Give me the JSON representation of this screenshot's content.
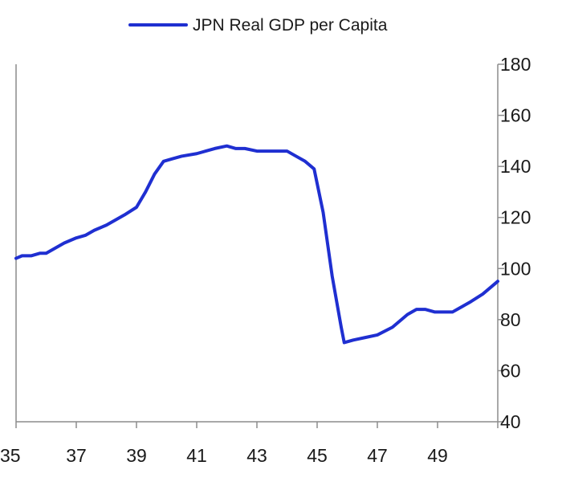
{
  "chart_data": {
    "type": "line",
    "legend_position": "top-center",
    "grid": false,
    "x_ticks": [
      "35",
      "37",
      "39",
      "41",
      "43",
      "45",
      "47",
      "49"
    ],
    "xlim": [
      35,
      51
    ],
    "y_axis_side": "right",
    "ylim": [
      40,
      180
    ],
    "y_ticks": [
      "180",
      "160",
      "140",
      "120",
      "100",
      "80",
      "60",
      "40"
    ],
    "series": [
      {
        "name": "JPN Real GDP per Capita",
        "color": "#1f2fd1",
        "points": [
          [
            35.0,
            104
          ],
          [
            35.2,
            105
          ],
          [
            35.5,
            105
          ],
          [
            35.8,
            106
          ],
          [
            36.0,
            106
          ],
          [
            36.3,
            108
          ],
          [
            36.6,
            110
          ],
          [
            37.0,
            112
          ],
          [
            37.3,
            113
          ],
          [
            37.6,
            115
          ],
          [
            38.0,
            117
          ],
          [
            38.3,
            119
          ],
          [
            38.6,
            121
          ],
          [
            39.0,
            124
          ],
          [
            39.3,
            130
          ],
          [
            39.6,
            137
          ],
          [
            39.9,
            142
          ],
          [
            40.2,
            143
          ],
          [
            40.5,
            144
          ],
          [
            41.0,
            145
          ],
          [
            41.3,
            146
          ],
          [
            41.6,
            147
          ],
          [
            42.0,
            148
          ],
          [
            42.3,
            147
          ],
          [
            42.6,
            147
          ],
          [
            43.0,
            146
          ],
          [
            43.5,
            146
          ],
          [
            44.0,
            146
          ],
          [
            44.3,
            144
          ],
          [
            44.6,
            142
          ],
          [
            44.9,
            139
          ],
          [
            45.2,
            122
          ],
          [
            45.5,
            97
          ],
          [
            45.8,
            77
          ],
          [
            45.9,
            71
          ],
          [
            46.2,
            72
          ],
          [
            46.6,
            73
          ],
          [
            47.0,
            74
          ],
          [
            47.5,
            77
          ],
          [
            47.8,
            80
          ],
          [
            48.0,
            82
          ],
          [
            48.3,
            84
          ],
          [
            48.6,
            84
          ],
          [
            48.9,
            83
          ],
          [
            49.2,
            83
          ],
          [
            49.5,
            83
          ],
          [
            49.8,
            85
          ],
          [
            50.1,
            87
          ],
          [
            50.5,
            90
          ],
          [
            50.8,
            93
          ],
          [
            51.0,
            95
          ]
        ]
      }
    ]
  }
}
